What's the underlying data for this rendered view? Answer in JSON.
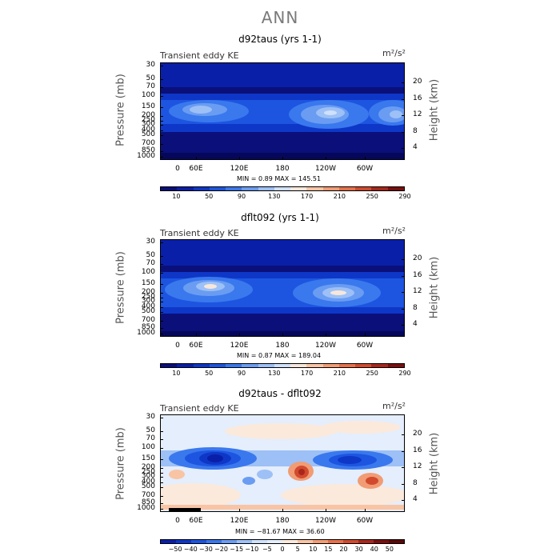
{
  "main_title": "ANN",
  "chart_data": [
    {
      "type": "heatmap",
      "title": "d92taus (yrs 1-1)",
      "subtitle": "Transient eddy KE",
      "units": "m²/s²",
      "ylabel": "Pressure (mb)",
      "y2label": "Height (km)",
      "y_ticks": [
        "30",
        "50",
        "70",
        "100",
        "150",
        "200",
        "250",
        "300",
        "400",
        "500",
        "700",
        "850",
        "1000"
      ],
      "y2_ticks": [
        "20",
        "16",
        "12",
        "8",
        "4"
      ],
      "x_ticks": [
        "0",
        "60E",
        "120E",
        "180",
        "120W",
        "60W"
      ],
      "stats": "MIN =     0.89   MAX = 145.51",
      "colorbar_labels": [
        "10",
        "50",
        "90",
        "130",
        "170",
        "210",
        "250",
        "290"
      ]
    },
    {
      "type": "heatmap",
      "title": "dflt092 (yrs 1-1)",
      "subtitle": "Transient eddy KE",
      "units": "m²/s²",
      "ylabel": "Pressure (mb)",
      "y2label": "Height (km)",
      "y_ticks": [
        "30",
        "50",
        "70",
        "100",
        "150",
        "200",
        "250",
        "300",
        "400",
        "500",
        "700",
        "850",
        "1000"
      ],
      "y2_ticks": [
        "20",
        "16",
        "12",
        "8",
        "4"
      ],
      "x_ticks": [
        "0",
        "60E",
        "120E",
        "180",
        "120W",
        "60W"
      ],
      "stats": "MIN =     0.87   MAX = 189.04",
      "colorbar_labels": [
        "10",
        "50",
        "90",
        "130",
        "170",
        "210",
        "250",
        "290"
      ]
    },
    {
      "type": "heatmap",
      "title": "d92taus - dflt092",
      "subtitle": "Transient eddy KE",
      "units": "m²/s²",
      "ylabel": "Pressure (mb)",
      "y2label": "Height (km)",
      "y_ticks": [
        "30",
        "50",
        "70",
        "100",
        "150",
        "200",
        "250",
        "300",
        "400",
        "500",
        "700",
        "850",
        "1000"
      ],
      "y2_ticks": [
        "20",
        "16",
        "12",
        "8",
        "4"
      ],
      "x_ticks": [
        "0",
        "60E",
        "120E",
        "180",
        "120W",
        "60W"
      ],
      "stats": "MIN =  −81.67   MAX =  36.60",
      "colorbar_labels": [
        "−50",
        "−40",
        "−30",
        "−20",
        "−15",
        "−10",
        "−5",
        "0",
        "5",
        "10",
        "15",
        "20",
        "30",
        "40",
        "50"
      ]
    }
  ],
  "colors": {
    "seq": [
      "#0a0f7a",
      "#0a1fa8",
      "#0e37c8",
      "#1d55e0",
      "#3a78ee",
      "#6a9cf2",
      "#9dc0f6",
      "#cfe1fb",
      "#f6e7dc",
      "#f9c4a4",
      "#f19c74",
      "#e6714a",
      "#d24a2e",
      "#a8271c",
      "#7a0f0f"
    ],
    "diff": [
      "#0a1fa8",
      "#0e37c8",
      "#1d55e0",
      "#3a78ee",
      "#6a9cf2",
      "#9dc0f6",
      "#cfe1fb",
      "#e4eefc",
      "#fbe9dc",
      "#f9c4a4",
      "#f19c74",
      "#e6714a",
      "#d24a2e",
      "#a8271c",
      "#7a0f0f",
      "#5a0808"
    ]
  }
}
